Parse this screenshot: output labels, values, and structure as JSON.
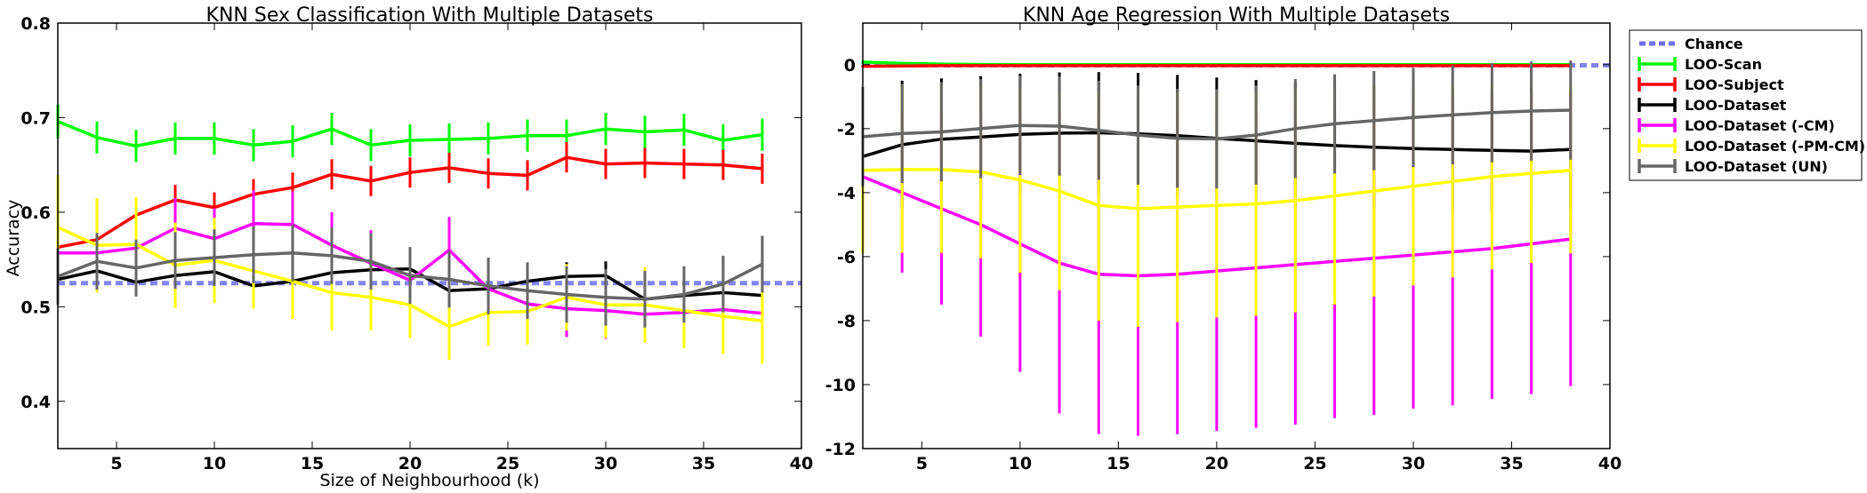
{
  "chart_data": [
    {
      "type": "line",
      "title": "KNN Sex Classification With Multiple Datasets",
      "xlabel": "Size of Neighbourhood (k)",
      "ylabel": "Accuracy",
      "xlim": [
        2,
        40
      ],
      "ylim": [
        0.35,
        0.8
      ],
      "xticks": [
        5,
        10,
        15,
        20,
        25,
        30,
        35,
        40
      ],
      "yticks": [
        0.4,
        0.5,
        0.6,
        0.7,
        0.8
      ],
      "x": [
        2,
        4,
        6,
        8,
        10,
        12,
        14,
        16,
        18,
        20,
        22,
        24,
        26,
        28,
        30,
        32,
        34,
        36,
        38
      ],
      "reference_line": {
        "name": "Chance",
        "y": 0.525
      },
      "series": [
        {
          "name": "LOO-Scan",
          "values": [
            0.696,
            0.679,
            0.67,
            0.678,
            0.678,
            0.671,
            0.675,
            0.688,
            0.671,
            0.676,
            0.677,
            0.678,
            0.681,
            0.681,
            0.688,
            0.685,
            0.687,
            0.676,
            0.682
          ],
          "errors": [
            0.018,
            0.017,
            0.017,
            0.017,
            0.017,
            0.017,
            0.017,
            0.017,
            0.017,
            0.017,
            0.017,
            0.017,
            0.017,
            0.017,
            0.017,
            0.017,
            0.017,
            0.017,
            0.017
          ]
        },
        {
          "name": "LOO-Subject",
          "values": [
            0.563,
            0.571,
            0.597,
            0.613,
            0.605,
            0.619,
            0.626,
            0.64,
            0.633,
            0.642,
            0.647,
            0.641,
            0.639,
            0.658,
            0.651,
            0.652,
            0.651,
            0.65,
            0.646
          ],
          "errors": [
            0.016,
            0.016,
            0.016,
            0.016,
            0.016,
            0.016,
            0.016,
            0.016,
            0.016,
            0.016,
            0.016,
            0.016,
            0.016,
            0.016,
            0.016,
            0.016,
            0.016,
            0.016,
            0.016
          ]
        },
        {
          "name": "LOO-Dataset",
          "values": [
            0.529,
            0.538,
            0.526,
            0.533,
            0.537,
            0.522,
            0.527,
            0.536,
            0.539,
            0.54,
            0.517,
            0.519,
            0.527,
            0.532,
            0.533,
            0.508,
            0.512,
            0.515,
            0.512
          ],
          "errors": [
            0.015,
            0.015,
            0.015,
            0.015,
            0.015,
            0.015,
            0.015,
            0.015,
            0.015,
            0.015,
            0.015,
            0.015,
            0.015,
            0.015,
            0.015,
            0.015,
            0.015,
            0.015,
            0.015
          ]
        },
        {
          "name": "LOO-Dataset (-CM)",
          "values": [
            0.557,
            0.557,
            0.562,
            0.583,
            0.572,
            0.588,
            0.587,
            0.565,
            0.546,
            0.528,
            0.56,
            0.519,
            0.503,
            0.498,
            0.496,
            0.492,
            0.494,
            0.497,
            0.493
          ],
          "errors": [
            0.03,
            0.03,
            0.03,
            0.032,
            0.032,
            0.035,
            0.035,
            0.035,
            0.035,
            0.035,
            0.035,
            0.033,
            0.03,
            0.03,
            0.03,
            0.03,
            0.03,
            0.03,
            0.03
          ]
        },
        {
          "name": "LOO-Dataset (-PM-CM)",
          "values": [
            0.584,
            0.565,
            0.566,
            0.544,
            0.549,
            0.538,
            0.527,
            0.515,
            0.51,
            0.502,
            0.479,
            0.494,
            0.495,
            0.51,
            0.502,
            0.502,
            0.496,
            0.49,
            0.485
          ],
          "errors": [
            0.055,
            0.05,
            0.05,
            0.045,
            0.045,
            0.04,
            0.04,
            0.04,
            0.035,
            0.035,
            0.035,
            0.035,
            0.035,
            0.035,
            0.035,
            0.04,
            0.04,
            0.04,
            0.045
          ]
        },
        {
          "name": "LOO-Dataset (UN)",
          "values": [
            0.532,
            0.548,
            0.541,
            0.549,
            0.552,
            0.555,
            0.557,
            0.554,
            0.548,
            0.533,
            0.529,
            0.522,
            0.517,
            0.513,
            0.51,
            0.508,
            0.513,
            0.524,
            0.545
          ],
          "errors": [
            0.03,
            0.03,
            0.03,
            0.03,
            0.03,
            0.03,
            0.03,
            0.03,
            0.03,
            0.03,
            0.03,
            0.03,
            0.03,
            0.03,
            0.03,
            0.03,
            0.03,
            0.03,
            0.03
          ]
        }
      ]
    },
    {
      "type": "line",
      "title": "KNN Age Regression With Multiple Datasets",
      "xlabel": "",
      "ylabel": "",
      "xlim": [
        2,
        40
      ],
      "ylim": [
        -12,
        1.3
      ],
      "xticks": [
        5,
        10,
        15,
        20,
        25,
        30,
        35,
        40
      ],
      "yticks": [
        0,
        -2,
        -4,
        -6,
        -8,
        -10,
        -12
      ],
      "x": [
        2,
        4,
        6,
        8,
        10,
        12,
        14,
        16,
        18,
        20,
        22,
        24,
        26,
        28,
        30,
        32,
        34,
        36,
        38
      ],
      "reference_line": {
        "name": "Chance",
        "y": -0.02
      },
      "series": [
        {
          "name": "LOO-Scan",
          "values": [
            0.08,
            0.04,
            0.02,
            0.01,
            0.0,
            0.0,
            0.0,
            0.0,
            0.0,
            0.0,
            0.0,
            0.0,
            0.0,
            0.0,
            0.0,
            0.0,
            0.0,
            0.0,
            0.0
          ],
          "errors": [
            0.05,
            0.03,
            0.02,
            0.02,
            0.01,
            0.01,
            0.01,
            0.01,
            0.01,
            0.01,
            0.01,
            0.01,
            0.01,
            0.01,
            0.01,
            0.01,
            0.01,
            0.01,
            0.01
          ]
        },
        {
          "name": "LOO-Subject",
          "values": [
            -0.05,
            -0.04,
            -0.03,
            -0.03,
            -0.03,
            -0.03,
            -0.03,
            -0.03,
            -0.03,
            -0.03,
            -0.03,
            -0.03,
            -0.03,
            -0.03,
            -0.03,
            -0.03,
            -0.03,
            -0.03,
            -0.03
          ],
          "errors": [
            0.04,
            0.03,
            0.02,
            0.02,
            0.02,
            0.02,
            0.02,
            0.02,
            0.02,
            0.02,
            0.02,
            0.02,
            0.02,
            0.02,
            0.02,
            0.02,
            0.02,
            0.02,
            0.02
          ]
        },
        {
          "name": "LOO-Dataset",
          "values": [
            -2.87,
            -2.5,
            -2.33,
            -2.26,
            -2.18,
            -2.14,
            -2.13,
            -2.16,
            -2.22,
            -2.3,
            -2.38,
            -2.46,
            -2.53,
            -2.58,
            -2.62,
            -2.65,
            -2.68,
            -2.7,
            -2.65
          ],
          "errors": [
            2.1,
            2.0,
            1.9,
            1.9,
            1.9,
            1.9,
            1.9,
            1.9,
            1.9,
            1.9,
            1.9,
            1.9,
            1.9,
            1.9,
            1.9,
            1.9,
            1.9,
            1.9,
            1.9
          ]
        },
        {
          "name": "LOO-Dataset (-CM)",
          "values": [
            -3.5,
            -4.0,
            -4.5,
            -5.0,
            -5.6,
            -6.2,
            -6.55,
            -6.6,
            -6.55,
            -6.45,
            -6.35,
            -6.25,
            -6.15,
            -6.05,
            -5.95,
            -5.85,
            -5.75,
            -5.6,
            -5.45
          ],
          "errors": [
            2.3,
            2.5,
            3.0,
            3.5,
            4.0,
            4.7,
            5.0,
            5.0,
            5.0,
            5.0,
            5.0,
            5.0,
            4.9,
            4.9,
            4.8,
            4.8,
            4.7,
            4.7,
            4.6
          ]
        },
        {
          "name": "LOO-Dataset (-PM-CM)",
          "values": [
            -3.3,
            -3.28,
            -3.28,
            -3.35,
            -3.6,
            -3.95,
            -4.4,
            -4.5,
            -4.45,
            -4.4,
            -4.35,
            -4.25,
            -4.1,
            -3.95,
            -3.8,
            -3.65,
            -3.5,
            -3.4,
            -3.3
          ],
          "errors": [
            2.6,
            2.6,
            2.6,
            2.7,
            2.9,
            3.1,
            3.6,
            3.7,
            3.6,
            3.5,
            3.5,
            3.5,
            3.4,
            3.3,
            3.1,
            3.0,
            2.9,
            2.8,
            2.6
          ]
        },
        {
          "name": "LOO-Dataset (UN)",
          "values": [
            -2.25,
            -2.15,
            -2.1,
            -2.0,
            -1.9,
            -1.92,
            -2.05,
            -2.2,
            -2.3,
            -2.32,
            -2.2,
            -2.0,
            -1.85,
            -1.75,
            -1.65,
            -1.57,
            -1.5,
            -1.45,
            -1.42
          ],
          "errors": [
            1.55,
            1.55,
            1.55,
            1.55,
            1.55,
            1.55,
            1.55,
            1.55,
            1.55,
            1.55,
            1.55,
            1.55,
            1.55,
            1.55,
            1.55,
            1.55,
            1.55,
            1.55,
            1.55
          ]
        }
      ]
    }
  ],
  "legend": {
    "placement": "outside-right",
    "items": [
      {
        "label": "Chance",
        "color": "#6f6fec",
        "style": "dashed"
      },
      {
        "label": "LOO-Scan",
        "color": "#00ff00",
        "style": "solid"
      },
      {
        "label": "LOO-Subject",
        "color": "#ff0000",
        "style": "solid"
      },
      {
        "label": "LOO-Dataset",
        "color": "#000000",
        "style": "solid"
      },
      {
        "label": "LOO-Dataset (-CM)",
        "color": "#ff00ff",
        "style": "solid"
      },
      {
        "label": "LOO-Dataset (-PM-CM)",
        "color": "#ffff00",
        "style": "solid"
      },
      {
        "label": "LOO-Dataset (UN)",
        "color": "#666666",
        "style": "solid"
      }
    ]
  },
  "colors": {
    "LOO-Scan": "#00ff00",
    "LOO-Subject": "#ff0000",
    "LOO-Dataset": "#000000",
    "LOO-Dataset (-CM)": "#ff00ff",
    "LOO-Dataset (-PM-CM)": "#ffff00",
    "LOO-Dataset (UN)": "#666666",
    "Chance": "#6f6fec"
  }
}
